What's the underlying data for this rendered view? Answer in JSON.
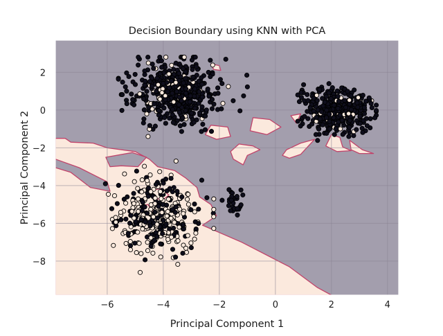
{
  "chart_data": {
    "type": "scatter",
    "title": "Decision Boundary using KNN with PCA",
    "xlabel": "Principal Component 1",
    "ylabel": "Principal Component 2",
    "xlim": [
      -7.85,
      4.4
    ],
    "ylim": [
      -9.8,
      3.7
    ],
    "xticks": [
      -6,
      -4,
      -2,
      0,
      2,
      4
    ],
    "yticks": [
      -8,
      -6,
      -4,
      -2,
      0,
      2
    ],
    "xtick_labels": [
      "−6",
      "−4",
      "−2",
      "0",
      "2",
      "4"
    ],
    "ytick_labels": [
      "−8",
      "−6",
      "−4",
      "−2",
      "0",
      "2"
    ],
    "grid": true,
    "legend": "none",
    "colors": {
      "region_dark": "#a39ead",
      "region_light": "#fbe9dd",
      "boundary": "#c1436a",
      "grid": "#8a8494",
      "point_dark": "#0f0e1c",
      "point_light": "#fbe9dd",
      "point_edge": "#000000"
    },
    "light_region_polygons": [
      [
        [
          -7.85,
          -1.5
        ],
        [
          -7.5,
          -1.5
        ],
        [
          -7.3,
          -1.7
        ],
        [
          -6.5,
          -1.75
        ],
        [
          -6.0,
          -2.0
        ],
        [
          -5.0,
          -2.2
        ],
        [
          -4.5,
          -2.6
        ],
        [
          -4.2,
          -3.0
        ],
        [
          -3.6,
          -3.2
        ],
        [
          -3.2,
          -3.6
        ],
        [
          -2.8,
          -4.1
        ],
        [
          -2.7,
          -4.6
        ],
        [
          -2.3,
          -5.0
        ],
        [
          -2.1,
          -5.6
        ],
        [
          -2.6,
          -6.1
        ],
        [
          -1.2,
          -7.0
        ],
        [
          0.5,
          -8.3
        ],
        [
          1.5,
          -9.4
        ],
        [
          2.0,
          -9.8
        ],
        [
          -7.85,
          -9.8
        ]
      ],
      [
        [
          -2.3,
          -0.8
        ],
        [
          -1.7,
          -0.9
        ],
        [
          -1.6,
          -1.4
        ],
        [
          -2.1,
          -1.55
        ],
        [
          -2.5,
          -1.3
        ]
      ],
      [
        [
          -1.3,
          -1.8
        ],
        [
          -0.8,
          -1.9
        ],
        [
          -0.55,
          -2.1
        ],
        [
          -1.0,
          -2.4
        ],
        [
          -1.15,
          -2.9
        ],
        [
          -1.5,
          -2.6
        ],
        [
          -1.6,
          -2.2
        ]
      ],
      [
        [
          -0.8,
          -0.4
        ],
        [
          -0.2,
          -0.5
        ],
        [
          0.2,
          -0.9
        ],
        [
          -0.3,
          -1.3
        ],
        [
          -0.9,
          -1.1
        ]
      ],
      [
        [
          0.4,
          -2.1
        ],
        [
          0.9,
          -1.75
        ],
        [
          1.4,
          -1.55
        ],
        [
          0.9,
          -2.35
        ],
        [
          0.5,
          -2.55
        ],
        [
          0.25,
          -2.4
        ]
      ],
      [
        [
          2.0,
          -1.3
        ],
        [
          2.3,
          -1.45
        ],
        [
          2.4,
          -1.95
        ],
        [
          2.7,
          -2.15
        ],
        [
          2.2,
          -2.2
        ],
        [
          1.8,
          -1.9
        ]
      ],
      [
        [
          2.65,
          -1.6
        ],
        [
          3.1,
          -2.1
        ],
        [
          3.5,
          -2.3
        ],
        [
          3.0,
          -2.3
        ],
        [
          2.7,
          -2.1
        ]
      ],
      [
        [
          0.55,
          -0.3
        ],
        [
          0.9,
          -0.2
        ],
        [
          0.75,
          -0.7
        ]
      ],
      [
        [
          -3.9,
          1.05
        ],
        [
          -3.55,
          1.2
        ],
        [
          -3.4,
          0.85
        ],
        [
          -3.7,
          0.8
        ]
      ],
      [
        [
          -2.3,
          2.45
        ],
        [
          -2.0,
          2.35
        ],
        [
          -1.95,
          2.1
        ],
        [
          -2.2,
          2.15
        ]
      ],
      [
        [
          -4.5,
          -4.3
        ],
        [
          -4.1,
          -4.15
        ],
        [
          -3.8,
          -4.5
        ],
        [
          -4.0,
          -4.75
        ],
        [
          -4.4,
          -4.65
        ]
      ],
      [
        [
          -4.9,
          -5.1
        ],
        [
          -4.55,
          -5.0
        ],
        [
          -4.35,
          -5.4
        ],
        [
          -4.7,
          -5.6
        ]
      ]
    ],
    "dark_region_polygons": [
      [
        [
          -7.85,
          -2.6
        ],
        [
          -7.0,
          -3.05
        ],
        [
          -6.0,
          -3.8
        ],
        [
          -5.9,
          -4.3
        ],
        [
          -6.6,
          -4.1
        ],
        [
          -7.3,
          -3.3
        ],
        [
          -7.85,
          -3.05
        ]
      ],
      [
        [
          -6.05,
          -2.5
        ],
        [
          -5.1,
          -2.25
        ],
        [
          -4.6,
          -2.5
        ],
        [
          -4.9,
          -3.0
        ],
        [
          -5.5,
          -2.95
        ],
        [
          -5.9,
          -3.0
        ]
      ]
    ],
    "cluster_summary": [
      {
        "region": "upper-left cluster",
        "x_range": [
          -5.6,
          -1.0
        ],
        "y_range": [
          -2.7,
          2.8
        ]
      },
      {
        "region": "right cluster",
        "x_range": [
          0.8,
          3.6
        ],
        "y_range": [
          -1.9,
          1.4
        ]
      },
      {
        "region": "lower-left cluster",
        "x_range": [
          -7.0,
          -2.2
        ],
        "y_range": [
          -8.7,
          -2.9
        ]
      },
      {
        "region": "small middle cluster",
        "x_range": [
          -1.9,
          -1.0
        ],
        "y_range": [
          -5.6,
          -4.1
        ]
      }
    ]
  }
}
